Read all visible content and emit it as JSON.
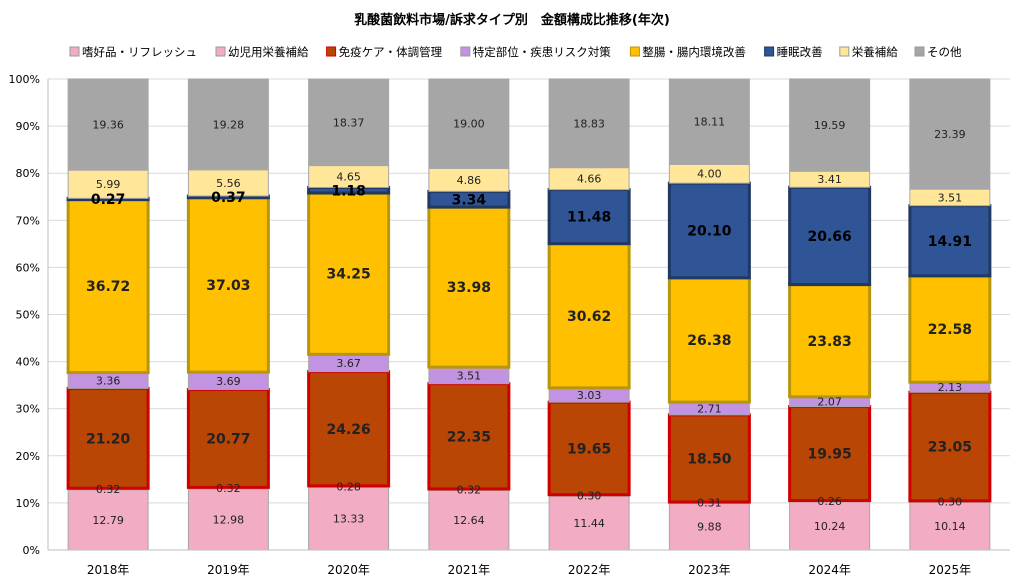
{
  "chart_data": {
    "type": "bar",
    "stacked": true,
    "title": "乳酸菌飲料市場/訴求タイプ別　金額構成比推移(年次)",
    "categories": [
      "2018年",
      "2019年",
      "2020年",
      "2021年",
      "2022年",
      "2023年",
      "2024年",
      "2025年"
    ],
    "ylim": [
      0,
      100
    ],
    "yticks": [
      "0%",
      "10%",
      "20%",
      "30%",
      "40%",
      "50%",
      "60%",
      "70%",
      "80%",
      "90%",
      "100%"
    ],
    "grid": true,
    "legend_position": "top",
    "series": [
      {
        "name": "嗜好品・リフレッシュ",
        "color": "#f2adc4",
        "border": "#a6a6a6",
        "bold": false,
        "values": [
          12.79,
          12.98,
          13.33,
          12.64,
          11.44,
          9.88,
          10.24,
          10.14
        ]
      },
      {
        "name": "幼児用栄養補給",
        "color": "#f2adc4",
        "border": "#a6a6a6",
        "bold": false,
        "values": [
          0.32,
          0.32,
          0.28,
          0.32,
          0.3,
          0.31,
          0.26,
          0.3
        ]
      },
      {
        "name": "免疫ケア・体調管理",
        "color": "#b94604",
        "border": "#d00000",
        "bold": true,
        "values": [
          21.2,
          20.77,
          24.26,
          22.35,
          19.65,
          18.5,
          19.95,
          23.05
        ]
      },
      {
        "name": "特定部位・疾患リスク対策",
        "color": "#c293e0",
        "border": "#a6a6a6",
        "bold": false,
        "values": [
          3.36,
          3.69,
          3.67,
          3.51,
          3.03,
          2.71,
          2.07,
          2.13
        ]
      },
      {
        "name": "整腸・腸内環境改善",
        "color": "#ffc000",
        "border": "#b8960c",
        "bold": true,
        "values": [
          36.72,
          37.03,
          34.25,
          33.98,
          30.62,
          26.38,
          23.83,
          22.58
        ]
      },
      {
        "name": "睡眠改善",
        "color": "#2f5597",
        "border": "#1f3864",
        "bold": true,
        "values": [
          0.27,
          0.37,
          1.18,
          3.34,
          11.48,
          20.1,
          20.66,
          14.91
        ]
      },
      {
        "name": "栄養補給",
        "color": "#ffe699",
        "border": "#a6a6a6",
        "bold": false,
        "values": [
          5.99,
          5.56,
          4.65,
          4.86,
          4.66,
          4.0,
          3.41,
          3.51
        ]
      },
      {
        "name": "その他",
        "color": "#a6a6a6",
        "border": "#a6a6a6",
        "bold": false,
        "values": [
          19.36,
          19.28,
          18.37,
          19.0,
          18.83,
          18.11,
          19.59,
          23.39
        ]
      }
    ]
  }
}
